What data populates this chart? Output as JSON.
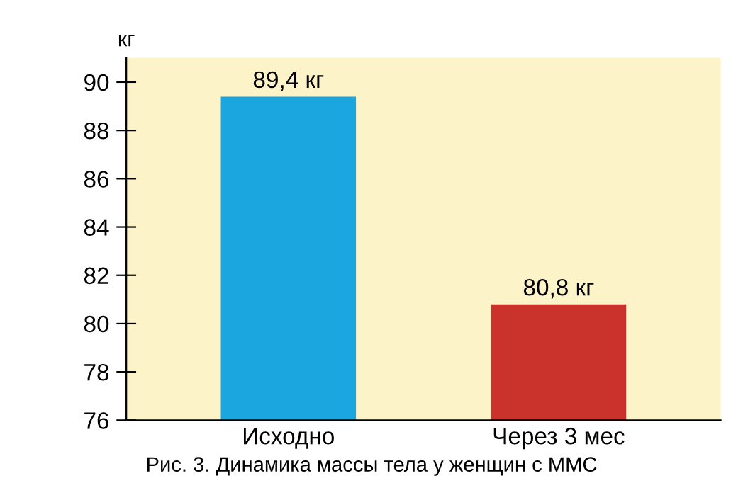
{
  "chart_data": {
    "type": "bar",
    "ylabel": "кг",
    "categories": [
      "Исходно",
      "Через 3 мес"
    ],
    "values": [
      89.4,
      80.8
    ],
    "colors": [
      "#1ba6df",
      "#c9332b"
    ],
    "value_labels": [
      "89,4 кг",
      "80,8 кг"
    ],
    "ylim": [
      76,
      91
    ],
    "yticks": [
      76,
      78,
      80,
      82,
      84,
      86,
      88,
      90
    ],
    "grid": false,
    "legend": false,
    "annotations": [
      "Рис. 3. Динамика массы тела у женщин с ММС"
    ]
  }
}
